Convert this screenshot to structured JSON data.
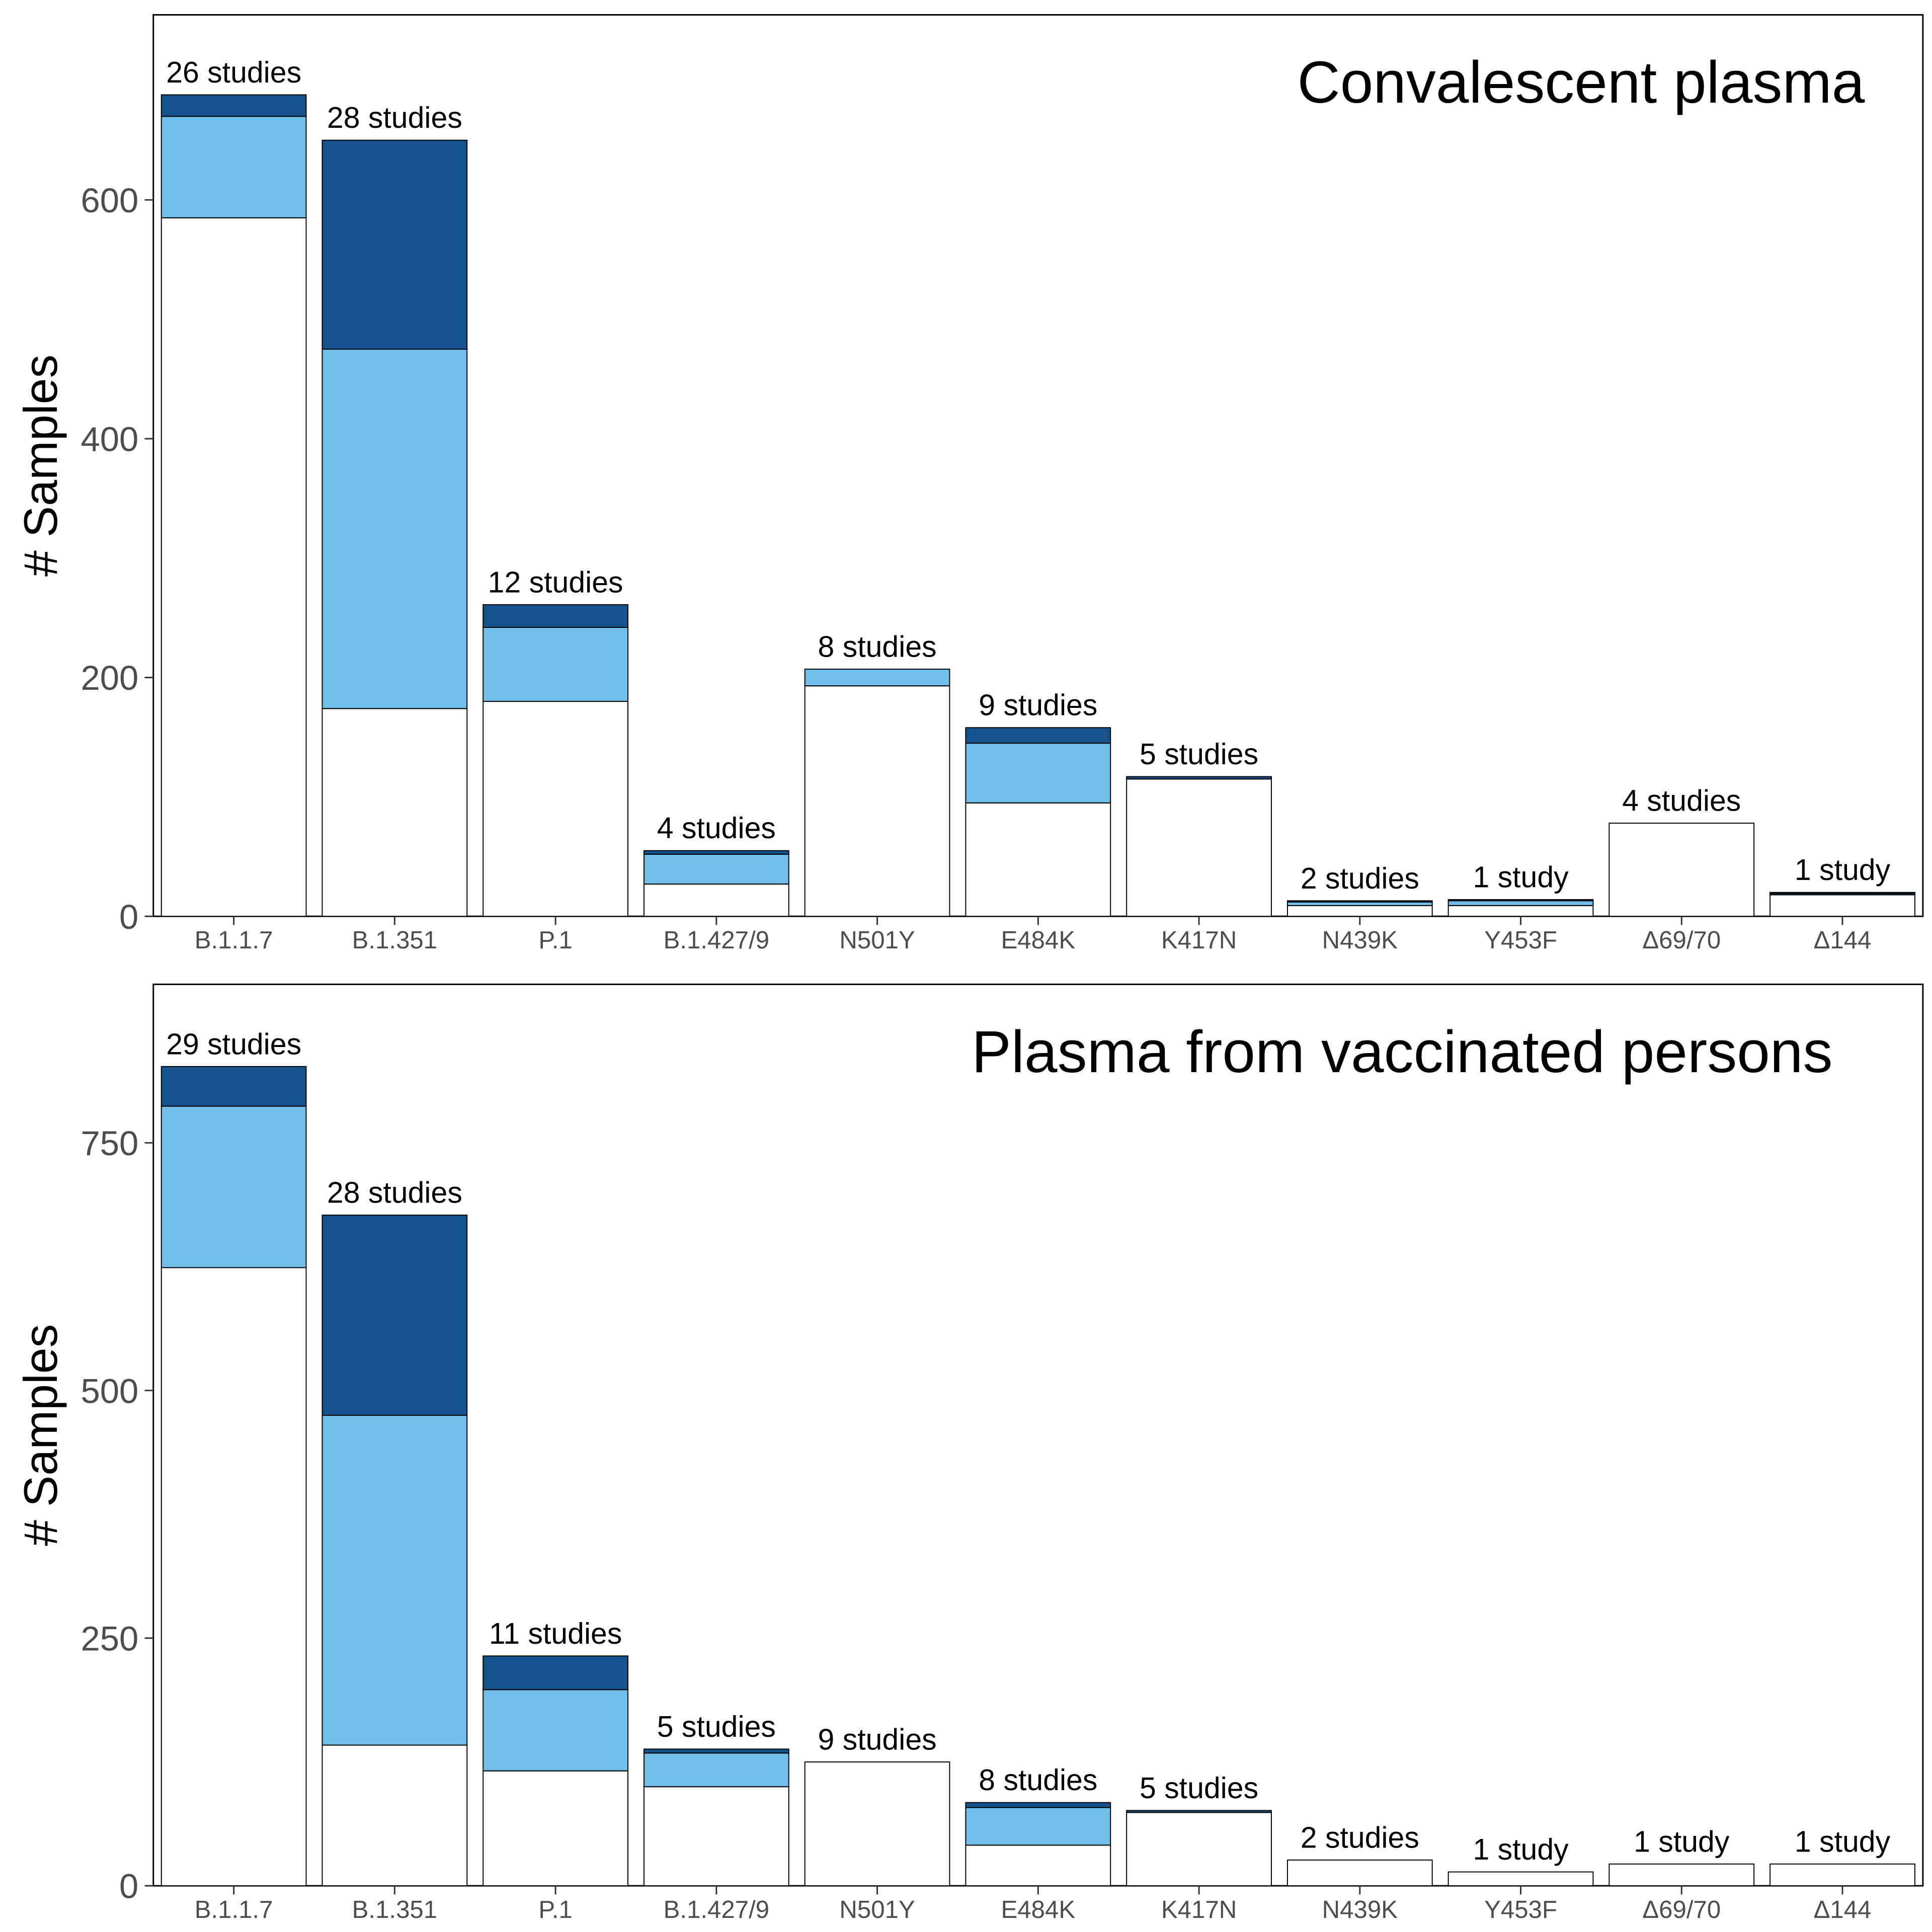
{
  "colors": {
    "white": "#ffffff",
    "light_blue": "#6fbfea",
    "dark_blue": "#15538f",
    "outline": "#000000"
  },
  "chart_data": [
    {
      "type": "bar",
      "stacked": true,
      "title": "Convalescent plasma",
      "ylabel": "# Samples",
      "ylim": [
        0,
        755
      ],
      "yticks": [
        0,
        200,
        400,
        600
      ],
      "grid": false,
      "legend": "none",
      "categories": [
        "B.1.1.7",
        "B.1.351",
        "P.1",
        "B.1.427/9",
        "N501Y",
        "E484K",
        "K417N",
        "N439K",
        "Y453F",
        "Δ69/70",
        "Δ144"
      ],
      "series": [
        {
          "color": "white",
          "values": [
            585,
            174,
            180,
            27,
            193,
            95,
            115,
            9,
            9,
            78,
            18
          ]
        },
        {
          "color": "light_blue",
          "values": [
            85,
            301,
            62,
            25,
            14,
            50,
            0,
            3,
            4,
            0,
            1
          ]
        },
        {
          "color": "dark_blue",
          "values": [
            18,
            175,
            19,
            3,
            0,
            13,
            2,
            1,
            1,
            0,
            1
          ]
        }
      ],
      "bar_labels": [
        "26 studies",
        "28 studies",
        "12 studies",
        "4 studies",
        "8 studies",
        "9 studies",
        "5 studies",
        "2 studies",
        "1 study",
        "4 studies",
        "1 study"
      ]
    },
    {
      "type": "bar",
      "stacked": true,
      "title": "Plasma from vaccinated persons",
      "ylabel": "# Samples",
      "ylim": [
        0,
        910
      ],
      "yticks": [
        0,
        250,
        500,
        750
      ],
      "grid": false,
      "legend": "none",
      "categories": [
        "B.1.1.7",
        "B.1.351",
        "P.1",
        "B.1.427/9",
        "N501Y",
        "E484K",
        "K417N",
        "N439K",
        "Y453F",
        "Δ69/70",
        "Δ144"
      ],
      "series": [
        {
          "color": "white",
          "values": [
            624,
            142,
            116,
            100,
            125,
            41,
            74,
            26,
            14,
            22,
            22
          ]
        },
        {
          "color": "light_blue",
          "values": [
            163,
            333,
            82,
            34,
            0,
            38,
            0,
            0,
            0,
            0,
            0
          ]
        },
        {
          "color": "dark_blue",
          "values": [
            40,
            202,
            34,
            4,
            0,
            5,
            2,
            0,
            0,
            0,
            0
          ]
        }
      ],
      "bar_labels": [
        "29 studies",
        "28 studies",
        "11 studies",
        "5 studies",
        "9 studies",
        "8 studies",
        "5 studies",
        "2 studies",
        "1 study",
        "1 study",
        "1 study"
      ]
    }
  ]
}
